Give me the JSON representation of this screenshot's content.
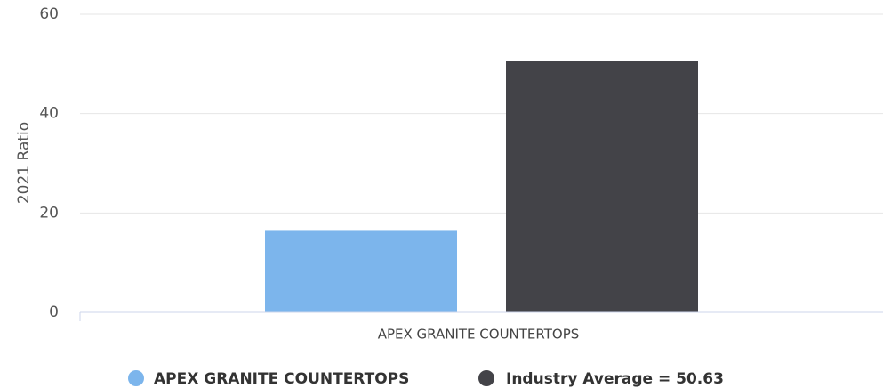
{
  "chart_data": {
    "type": "bar",
    "categories": [
      "APEX GRANITE COUNTERTOPS"
    ],
    "series": [
      {
        "name": "APEX GRANITE COUNTERTOPS",
        "values": [
          16.4
        ],
        "color": "#7cb5ec"
      },
      {
        "name": "Industry Average = 50.63",
        "values": [
          50.63
        ],
        "color": "#434348"
      }
    ],
    "ylabel": "2021 Ratio",
    "xlabel": "",
    "ylim": [
      0,
      60
    ],
    "yticks": [
      0,
      20,
      40,
      60
    ],
    "grid": true,
    "legend": "bottom-center"
  }
}
